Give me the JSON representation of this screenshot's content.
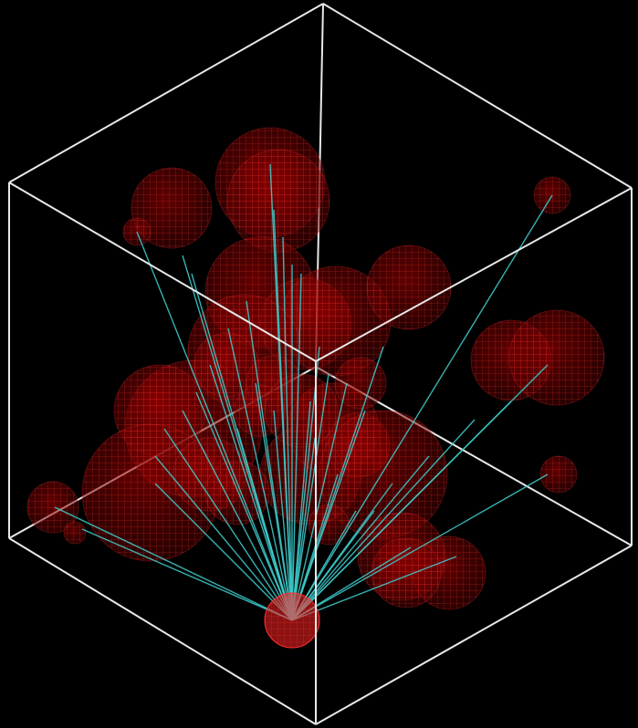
{
  "scene": {
    "background_color": "#000000",
    "box_edge_color": "#e8e8e8",
    "sphere_color": "#c80000",
    "sphere_mesh_color": "#ff3030",
    "link_color": "#3fd0d0",
    "hub_sphere_color": "#ff2020",
    "sphere_count": 33,
    "link_count": 40,
    "rendering": "wireframe-spheres-in-cube"
  }
}
